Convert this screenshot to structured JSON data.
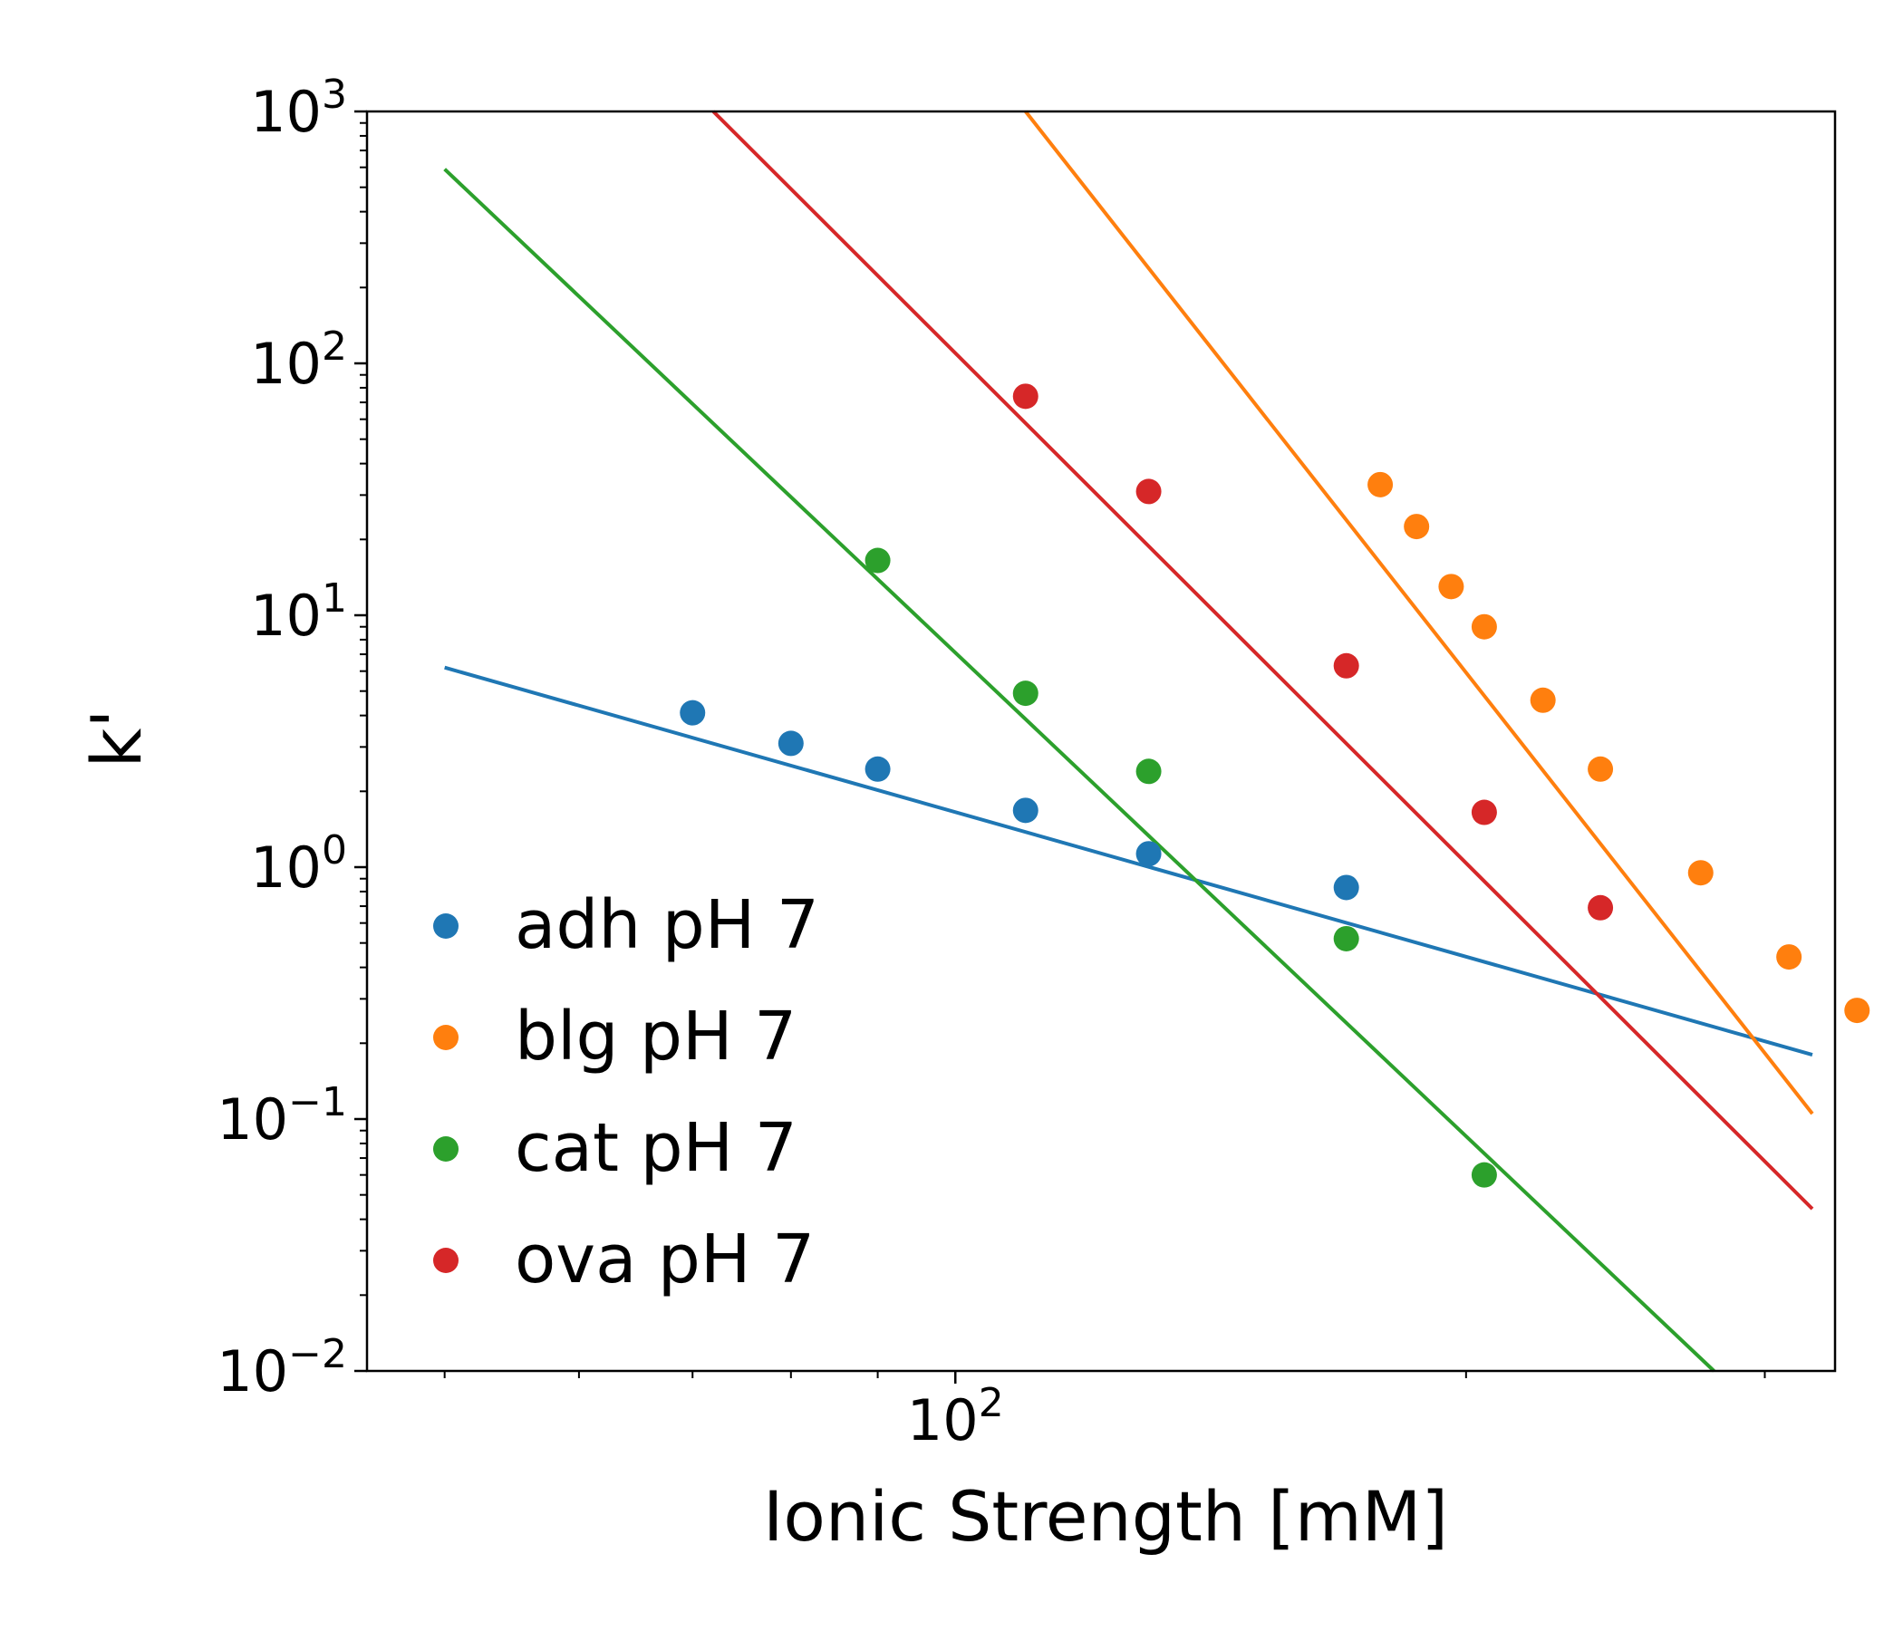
{
  "chart_data": {
    "type": "scatter",
    "title": "",
    "xlabel": "Ionic Strength [mM]",
    "ylabel": "k'",
    "x_scale": "log",
    "y_scale": "log",
    "xlim": [
      45,
      330
    ],
    "ylim": [
      0.01,
      1000
    ],
    "x_ticks": [
      {
        "value": 100,
        "base": "10",
        "exp": "2"
      }
    ],
    "y_ticks": [
      {
        "value": 1000,
        "base": "10",
        "exp": "3"
      },
      {
        "value": 100,
        "base": "10",
        "exp": "2"
      },
      {
        "value": 10,
        "base": "10",
        "exp": "1"
      },
      {
        "value": 1,
        "base": "10",
        "exp": "0"
      },
      {
        "value": 0.1,
        "base": "10",
        "exp": "−1"
      },
      {
        "value": 0.01,
        "base": "10",
        "exp": "−2"
      }
    ],
    "grid": false,
    "legend_position": "lower-left",
    "series": [
      {
        "name": "adh pH 7",
        "color": "#1f77b4",
        "points": [
          [
            70,
            4.1
          ],
          [
            80,
            3.1
          ],
          [
            90,
            2.45
          ],
          [
            110,
            1.68
          ],
          [
            130,
            1.13
          ],
          [
            170,
            0.83
          ]
        ],
        "fit": [
          [
            50,
            6.2
          ],
          [
            320,
            0.18
          ]
        ]
      },
      {
        "name": "blg pH 7",
        "color": "#ff7f0e",
        "points": [
          [
            178,
            33
          ],
          [
            187,
            22.5
          ],
          [
            196,
            13
          ],
          [
            205,
            9
          ],
          [
            222,
            4.6
          ],
          [
            240,
            2.45
          ],
          [
            275,
            0.95
          ],
          [
            310,
            0.44
          ],
          [
            340,
            0.27
          ]
        ],
        "fit": [
          [
            110,
            1000
          ],
          [
            320,
            0.105
          ]
        ]
      },
      {
        "name": "cat pH 7",
        "color": "#2ca02c",
        "points": [
          [
            90,
            16.5
          ],
          [
            110,
            4.9
          ],
          [
            130,
            2.4
          ],
          [
            170,
            0.52
          ],
          [
            205,
            0.06
          ]
        ],
        "fit": [
          [
            50,
            590
          ],
          [
            280,
            0.01
          ]
        ]
      },
      {
        "name": "ova pH 7",
        "color": "#d62728",
        "points": [
          [
            110,
            74
          ],
          [
            130,
            31
          ],
          [
            170,
            6.3
          ],
          [
            205,
            1.65
          ],
          [
            240,
            0.69
          ]
        ],
        "fit": [
          [
            72,
            1000
          ],
          [
            320,
            0.044
          ]
        ]
      }
    ]
  }
}
